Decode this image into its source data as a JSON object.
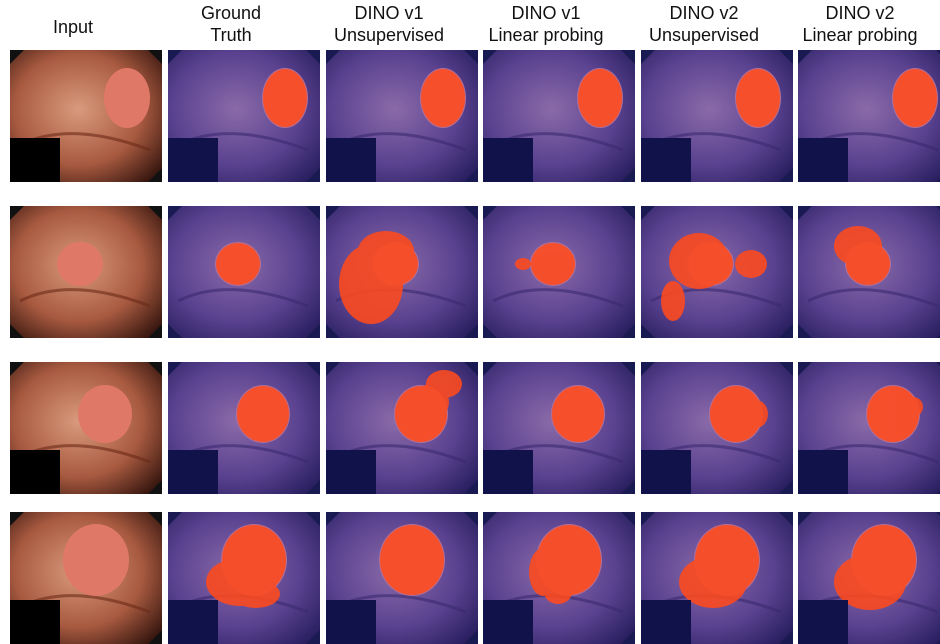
{
  "figure": {
    "columns": [
      {
        "id": "input",
        "label": "Input"
      },
      {
        "id": "gt",
        "label": "Ground\nTruth"
      },
      {
        "id": "d1u",
        "label": "DINO v1\nUnsupervised"
      },
      {
        "id": "d1l",
        "label": "DINO v1\nLinear probing"
      },
      {
        "id": "d2u",
        "label": "DINO v2\nUnsupervised"
      },
      {
        "id": "d2l",
        "label": "DINO v2\nLinear probing"
      }
    ],
    "rows": [
      {
        "id": "row-1",
        "polyp": "right-upper",
        "overlay_note": "all methods tightly match ground truth"
      },
      {
        "id": "row-2",
        "polyp": "left-center",
        "overlay_note": "DINO v1 unsupervised over-segments lower-left; DINO v2 unsupervised leaks to the right"
      },
      {
        "id": "row-3",
        "polyp": "center",
        "overlay_note": "DINO v1 unsupervised extends upward-right"
      },
      {
        "id": "row-4",
        "polyp": "center-large",
        "overlay_note": "linear probing methods cover lobulated base"
      }
    ],
    "colors": {
      "mask": "#ff4a1c",
      "overlay_tint": "#4a3a8a",
      "tissue": "#c8806a",
      "background": "#ffffff"
    }
  }
}
